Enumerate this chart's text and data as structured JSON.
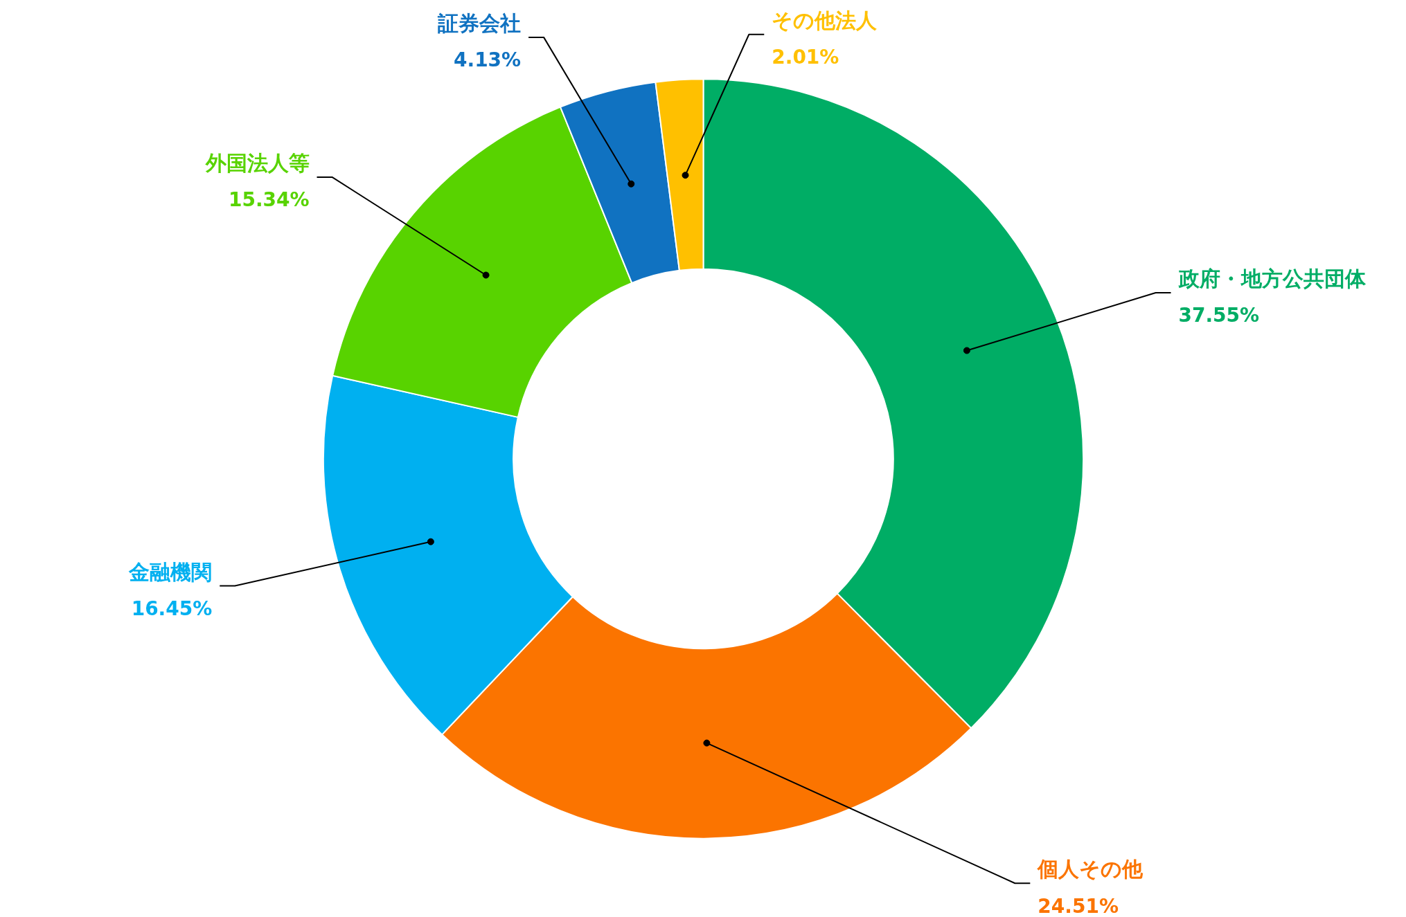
{
  "chart_data": {
    "type": "donut",
    "categories": [
      "政府・地方公共団体",
      "個人その他",
      "金融機関",
      "外国法人等",
      "証券会社",
      "その他法人"
    ],
    "values": [
      37.55,
      24.51,
      16.45,
      15.34,
      4.13,
      2.01
    ],
    "colors": [
      "#00ad65",
      "#fb7400",
      "#00b0f0",
      "#58d300",
      "#1072c1",
      "#ffc000"
    ],
    "value_labels": [
      "37.55%",
      "24.51%",
      "16.45%",
      "15.34%",
      "4.13%",
      "2.01%"
    ]
  }
}
